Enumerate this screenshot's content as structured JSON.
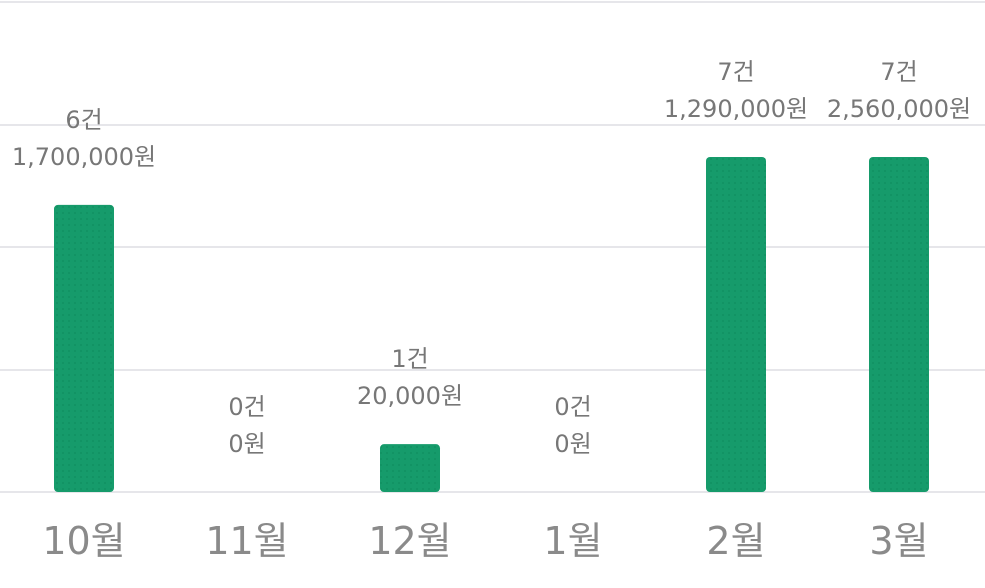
{
  "chart_data": {
    "type": "bar",
    "categories": [
      "10월",
      "11월",
      "12월",
      "1월",
      "2월",
      "3월"
    ],
    "counts": [
      "6건",
      "0건",
      "1건",
      "0건",
      "7건",
      "7건"
    ],
    "amounts": [
      "1,700,000원",
      "0원",
      "20,000원",
      "0원",
      "1,290,000원",
      "2,560,000원"
    ],
    "values": [
      6,
      0,
      1,
      0,
      7,
      7
    ],
    "ylim": [
      0,
      8
    ],
    "grid": true,
    "bar_color": "#169b6b",
    "title": "",
    "xlabel": "",
    "ylabel": ""
  }
}
